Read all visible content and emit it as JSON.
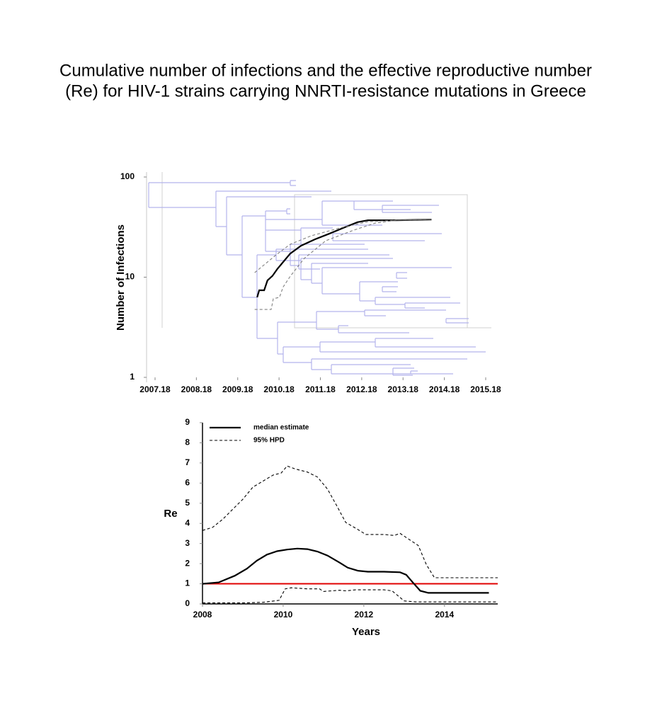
{
  "title": [
    "Cumulative number of infections and the effective reproductive number",
    "(Re) for HIV-1 strains carrying NNRTI-resistance mutations in Greece"
  ],
  "chart_data": [
    {
      "type": "line",
      "y_label": "Number of Infections",
      "log_y": true,
      "xlim": [
        2007.18,
        2015.18
      ],
      "xticks": [
        2007.18,
        2008.18,
        2009.18,
        2010.18,
        2011.18,
        2012.18,
        2013.18,
        2014.18,
        2015.18
      ],
      "ylim": [
        1,
        100
      ],
      "yticks": [
        1,
        10,
        100
      ],
      "series": [
        {
          "color": "#000000",
          "dashed": false,
          "x": [
            2009.65,
            2009.7,
            2009.82,
            2009.9,
            2010.02,
            2010.14,
            2010.28,
            2010.45,
            2010.71,
            2011.05,
            2011.39,
            2011.73,
            2012.08,
            2012.33,
            2013.02,
            2013.87
          ],
          "values": [
            6.3,
            7.4,
            7.4,
            9.3,
            10.3,
            12.1,
            14.2,
            17.2,
            20.6,
            23.9,
            27.1,
            31.0,
            35.4,
            37.0,
            37.0,
            37.6
          ]
        },
        {
          "color": "#808080",
          "dashed": true,
          "x": [
            2009.59,
            2010.11,
            2010.45,
            2010.96,
            2011.65,
            2012.33,
            2013.02,
            2013.87
          ],
          "values": [
            11.1,
            16.7,
            21.3,
            25.9,
            31.0,
            35.8,
            37.0,
            37.6
          ]
        },
        {
          "color": "#808080",
          "dashed": true,
          "x": [
            2009.59,
            2009.99,
            2010.04,
            2010.19,
            2010.28,
            2010.45,
            2010.79,
            2011.31,
            2011.99,
            2012.5,
            2013.02,
            2013.87
          ],
          "values": [
            4.76,
            4.76,
            6.1,
            6.3,
            8.0,
            10.2,
            15.4,
            23.1,
            29.5,
            34.6,
            37.0,
            37.6
          ]
        }
      ]
    },
    {
      "type": "line",
      "x_label": "Years",
      "y_label": "Re",
      "xlim": [
        2008,
        2015.32
      ],
      "xticks": [
        2008,
        2010,
        2012,
        2014
      ],
      "ylim": [
        0,
        9
      ],
      "yticks": [
        0,
        1,
        2,
        3,
        4,
        5,
        6,
        7,
        8,
        9
      ],
      "reference_line": {
        "value": 1,
        "color": "#e00000"
      },
      "series": [
        {
          "name": "median estimate",
          "color": "#000000",
          "dashed": false,
          "x": [
            2008,
            2008.4,
            2008.8,
            2009.1,
            2009.35,
            2009.6,
            2009.85,
            2010.1,
            2010.35,
            2010.6,
            2010.85,
            2011.1,
            2011.4,
            2011.6,
            2011.85,
            2012.1,
            2012.5,
            2012.9,
            2013.05,
            2013.2,
            2013.4,
            2013.6,
            2014.0,
            2015.1
          ],
          "values": [
            1.0,
            1.07,
            1.4,
            1.75,
            2.15,
            2.45,
            2.62,
            2.7,
            2.75,
            2.72,
            2.6,
            2.4,
            2.05,
            1.8,
            1.65,
            1.6,
            1.6,
            1.57,
            1.45,
            1.1,
            0.65,
            0.55,
            0.55,
            0.55
          ]
        },
        {
          "name": "95% HPD",
          "color": "#000000",
          "dashed": true,
          "x": [
            2008,
            2008.25,
            2008.5,
            2008.75,
            2009,
            2009.25,
            2009.5,
            2009.75,
            2009.95,
            2010.1,
            2010.3,
            2010.6,
            2010.85,
            2011.1,
            2011.35,
            2011.55,
            2011.85,
            2012.05,
            2012.5,
            2012.75,
            2012.9,
            2013.2,
            2013.35,
            2013.55,
            2013.75,
            2015.32
          ],
          "values": [
            3.65,
            3.8,
            4.2,
            4.7,
            5.2,
            5.8,
            6.1,
            6.4,
            6.5,
            6.85,
            6.7,
            6.55,
            6.3,
            5.7,
            4.8,
            4.05,
            3.7,
            3.45,
            3.45,
            3.4,
            3.5,
            3.1,
            2.9,
            1.95,
            1.3,
            1.3
          ]
        },
        {
          "color": "#000000",
          "dashed": true,
          "x": [
            2008,
            2009.0,
            2009.5,
            2009.9,
            2010.05,
            2010.2,
            2010.6,
            2010.9,
            2011.0,
            2011.4,
            2011.55,
            2011.8,
            2012.5,
            2012.7,
            2013.0,
            2013.3,
            2015.32
          ],
          "values": [
            0.05,
            0.05,
            0.08,
            0.18,
            0.75,
            0.8,
            0.75,
            0.75,
            0.62,
            0.68,
            0.65,
            0.7,
            0.7,
            0.65,
            0.15,
            0.1,
            0.1
          ]
        }
      ]
    }
  ]
}
